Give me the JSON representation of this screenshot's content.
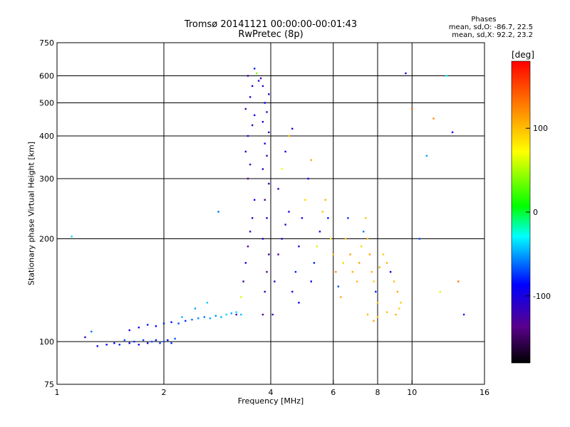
{
  "header": {
    "title": "Tromsø 20141121 00:00:00-00:01:43",
    "subtitle": "RwPretec (8p)"
  },
  "phase_info": {
    "title": "Phases",
    "line_o": "mean, sd,O: -86.7, 22.5",
    "line_x": "mean, sd,X:  92.2, 23.2"
  },
  "colorbar": {
    "unit": "[deg]",
    "range": [
      -180,
      180
    ],
    "tick_labels": [
      "100",
      "0",
      "-100"
    ],
    "tick_values": [
      100,
      0,
      -100
    ]
  },
  "chart_data": {
    "type": "scatter",
    "title": "Tromsø 20141121 00:00:00-00:01:43",
    "subtitle": "RwPretec (8p)",
    "xlabel": "Frequency [MHz]",
    "ylabel": "Stationary phase Virtual Height [km]",
    "x_scale": "log",
    "y_scale": "log",
    "xlim": [
      1,
      16
    ],
    "ylim": [
      75,
      750
    ],
    "x_ticks": [
      1,
      2,
      4,
      6,
      8,
      10,
      16
    ],
    "x_tick_labels": [
      "1",
      "2",
      "4",
      "6",
      "8",
      "10",
      "16"
    ],
    "y_ticks": [
      75,
      100,
      200,
      300,
      400,
      500,
      600,
      750
    ],
    "y_tick_labels": [
      "75",
      "100",
      "200",
      "300",
      "400",
      "500",
      "600",
      "750"
    ],
    "grid_x": [
      2,
      4,
      6,
      8,
      10
    ],
    "grid_y": [
      100,
      200,
      300,
      400,
      500,
      600
    ],
    "color_scale": "phase [deg], rainbow from -180 (black) to 180 (red)",
    "points": [
      [
        1.2,
        103,
        -110
      ],
      [
        1.3,
        97,
        -100
      ],
      [
        1.38,
        98,
        -90
      ],
      [
        1.45,
        99,
        -85
      ],
      [
        1.5,
        98,
        -80
      ],
      [
        1.55,
        101,
        -70
      ],
      [
        1.6,
        99,
        -95
      ],
      [
        1.65,
        100,
        -75
      ],
      [
        1.7,
        98,
        -88
      ],
      [
        1.75,
        101,
        -72
      ],
      [
        1.8,
        99,
        -92
      ],
      [
        1.85,
        100,
        -68
      ],
      [
        1.9,
        101,
        -82
      ],
      [
        1.95,
        99,
        -76
      ],
      [
        2.0,
        100,
        -70
      ],
      [
        2.05,
        101,
        -85
      ],
      [
        2.1,
        99,
        -78
      ],
      [
        2.15,
        102,
        -66
      ],
      [
        1.6,
        108,
        -95
      ],
      [
        1.7,
        110,
        -88
      ],
      [
        1.8,
        112,
        -80
      ],
      [
        1.9,
        111,
        -86
      ],
      [
        2.0,
        113,
        -78
      ],
      [
        2.1,
        114,
        -84
      ],
      [
        2.2,
        113,
        -70
      ],
      [
        2.3,
        115,
        -76
      ],
      [
        2.4,
        116,
        -62
      ],
      [
        2.5,
        117,
        -55
      ],
      [
        2.6,
        118,
        -60
      ],
      [
        2.7,
        117,
        -48
      ],
      [
        2.8,
        119,
        -52
      ],
      [
        2.9,
        118,
        -45
      ],
      [
        3.0,
        120,
        -40
      ],
      [
        3.1,
        121,
        -50
      ],
      [
        3.2,
        122,
        -35
      ],
      [
        3.3,
        120,
        -45
      ],
      [
        1.1,
        203,
        -40
      ],
      [
        1.25,
        107,
        -60
      ],
      [
        2.25,
        118,
        -45
      ],
      [
        2.45,
        125,
        -50
      ],
      [
        2.65,
        130,
        -40
      ],
      [
        2.85,
        240,
        -60
      ],
      [
        3.2,
        120,
        -110
      ],
      [
        3.3,
        135,
        60
      ],
      [
        3.35,
        150,
        -120
      ],
      [
        3.4,
        170,
        -100
      ],
      [
        3.45,
        190,
        -130
      ],
      [
        3.5,
        210,
        -115
      ],
      [
        3.55,
        230,
        -105
      ],
      [
        3.6,
        260,
        -95
      ],
      [
        3.45,
        300,
        -140
      ],
      [
        3.5,
        330,
        -120
      ],
      [
        3.4,
        360,
        -110
      ],
      [
        3.45,
        400,
        -100
      ],
      [
        3.55,
        430,
        -115
      ],
      [
        3.6,
        460,
        -90
      ],
      [
        3.4,
        480,
        -130
      ],
      [
        3.5,
        520,
        -105
      ],
      [
        3.55,
        560,
        -95
      ],
      [
        3.45,
        600,
        -120
      ],
      [
        3.6,
        630,
        -80
      ],
      [
        3.65,
        610,
        40
      ],
      [
        3.7,
        580,
        -110
      ],
      [
        3.8,
        120,
        -130
      ],
      [
        3.85,
        140,
        -115
      ],
      [
        3.9,
        160,
        -140
      ],
      [
        3.95,
        180,
        -120
      ],
      [
        3.8,
        200,
        -100
      ],
      [
        3.9,
        230,
        -110
      ],
      [
        3.85,
        260,
        -130
      ],
      [
        3.95,
        290,
        -115
      ],
      [
        3.8,
        320,
        -105
      ],
      [
        3.9,
        350,
        -125
      ],
      [
        3.85,
        380,
        -95
      ],
      [
        3.95,
        410,
        -115
      ],
      [
        3.8,
        440,
        -100
      ],
      [
        3.9,
        470,
        -120
      ],
      [
        3.85,
        500,
        -90
      ],
      [
        3.95,
        530,
        -110
      ],
      [
        3.8,
        560,
        -105
      ],
      [
        3.75,
        590,
        -115
      ],
      [
        4.05,
        120,
        -120
      ],
      [
        4.1,
        150,
        -110
      ],
      [
        4.2,
        180,
        -130
      ],
      [
        4.3,
        200,
        -100
      ],
      [
        4.4,
        220,
        -115
      ],
      [
        4.5,
        240,
        -95
      ],
      [
        4.2,
        280,
        -105
      ],
      [
        4.3,
        320,
        70
      ],
      [
        4.4,
        360,
        -90
      ],
      [
        4.5,
        400,
        100
      ],
      [
        4.6,
        420,
        -100
      ],
      [
        4.7,
        160,
        -80
      ],
      [
        4.8,
        190,
        -110
      ],
      [
        4.9,
        230,
        -100
      ],
      [
        5.0,
        260,
        90
      ],
      [
        5.1,
        300,
        -95
      ],
      [
        5.2,
        340,
        110
      ],
      [
        4.6,
        140,
        -105
      ],
      [
        4.8,
        130,
        -85
      ],
      [
        5.2,
        150,
        -90
      ],
      [
        5.3,
        170,
        -80
      ],
      [
        5.4,
        190,
        60
      ],
      [
        5.5,
        210,
        -100
      ],
      [
        5.6,
        240,
        95
      ],
      [
        5.7,
        260,
        105
      ],
      [
        5.8,
        230,
        -85
      ],
      [
        5.9,
        200,
        80
      ],
      [
        6.0,
        180,
        100
      ],
      [
        6.1,
        160,
        120
      ],
      [
        6.2,
        145,
        -70
      ],
      [
        6.3,
        135,
        110
      ],
      [
        6.4,
        170,
        90
      ],
      [
        6.5,
        200,
        100
      ],
      [
        6.6,
        230,
        -75
      ],
      [
        6.7,
        180,
        115
      ],
      [
        6.8,
        160,
        105
      ],
      [
        7.0,
        150,
        100
      ],
      [
        7.1,
        170,
        110
      ],
      [
        7.2,
        190,
        90
      ],
      [
        7.3,
        210,
        -60
      ],
      [
        7.4,
        230,
        95
      ],
      [
        7.5,
        200,
        100
      ],
      [
        7.6,
        180,
        115
      ],
      [
        7.7,
        160,
        105
      ],
      [
        7.8,
        150,
        90
      ],
      [
        7.9,
        140,
        -80
      ],
      [
        8.0,
        130,
        100
      ],
      [
        8.1,
        165,
        110
      ],
      [
        8.3,
        180,
        95
      ],
      [
        8.5,
        170,
        105
      ],
      [
        8.7,
        160,
        -85
      ],
      [
        8.9,
        150,
        100
      ],
      [
        9.1,
        140,
        110
      ],
      [
        9.3,
        130,
        95
      ],
      [
        7.5,
        120,
        100
      ],
      [
        8.0,
        118,
        95
      ],
      [
        8.5,
        122,
        100
      ],
      [
        9.0,
        120,
        105
      ],
      [
        9.2,
        125,
        90
      ],
      [
        7.8,
        115,
        110
      ],
      [
        9.6,
        610,
        -100
      ],
      [
        10.5,
        200,
        -70
      ],
      [
        11.5,
        450,
        120
      ],
      [
        12.0,
        140,
        60
      ],
      [
        12.5,
        600,
        -30
      ],
      [
        13.0,
        410,
        -90
      ],
      [
        13.5,
        150,
        130
      ],
      [
        14.0,
        120,
        -80
      ],
      [
        11.0,
        350,
        -50
      ],
      [
        10.0,
        480,
        140
      ]
    ]
  }
}
